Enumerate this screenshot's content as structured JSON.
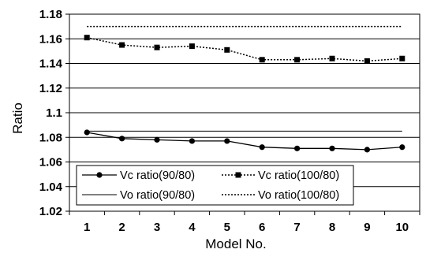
{
  "chart_data": {
    "type": "line",
    "xlabel": "Model No.",
    "ylabel": "Ratio",
    "categories": [
      "1",
      "2",
      "3",
      "4",
      "5",
      "6",
      "7",
      "8",
      "9",
      "10"
    ],
    "ylim": [
      1.02,
      1.18
    ],
    "yticks": [
      "1.02",
      "1.04",
      "1.06",
      "1.08",
      "1.1",
      "1.12",
      "1.14",
      "1.16",
      "1.18"
    ],
    "grid": "horizontal",
    "legend_position": "bottom-left",
    "series": [
      {
        "name": "Vc ratio(90/80)",
        "values": [
          1.084,
          1.079,
          1.078,
          1.077,
          1.077,
          1.072,
          1.071,
          1.071,
          1.07,
          1.072
        ],
        "style": "solid",
        "marker": "circle",
        "color": "#000000"
      },
      {
        "name": "Vc ratio(100/80)",
        "values": [
          1.161,
          1.155,
          1.153,
          1.154,
          1.151,
          1.143,
          1.143,
          1.144,
          1.142,
          1.144
        ],
        "style": "dotted",
        "marker": "square",
        "color": "#000000"
      },
      {
        "name": "Vo ratio(90/80)",
        "values": [
          1.085,
          1.085,
          1.085,
          1.085,
          1.085,
          1.085,
          1.085,
          1.085,
          1.085,
          1.085
        ],
        "style": "solid",
        "marker": "none",
        "color": "#000000"
      },
      {
        "name": "Vo ratio(100/80)",
        "values": [
          1.17,
          1.17,
          1.17,
          1.17,
          1.17,
          1.17,
          1.17,
          1.17,
          1.17,
          1.17
        ],
        "style": "dotted",
        "marker": "none",
        "color": "#000000"
      }
    ]
  }
}
